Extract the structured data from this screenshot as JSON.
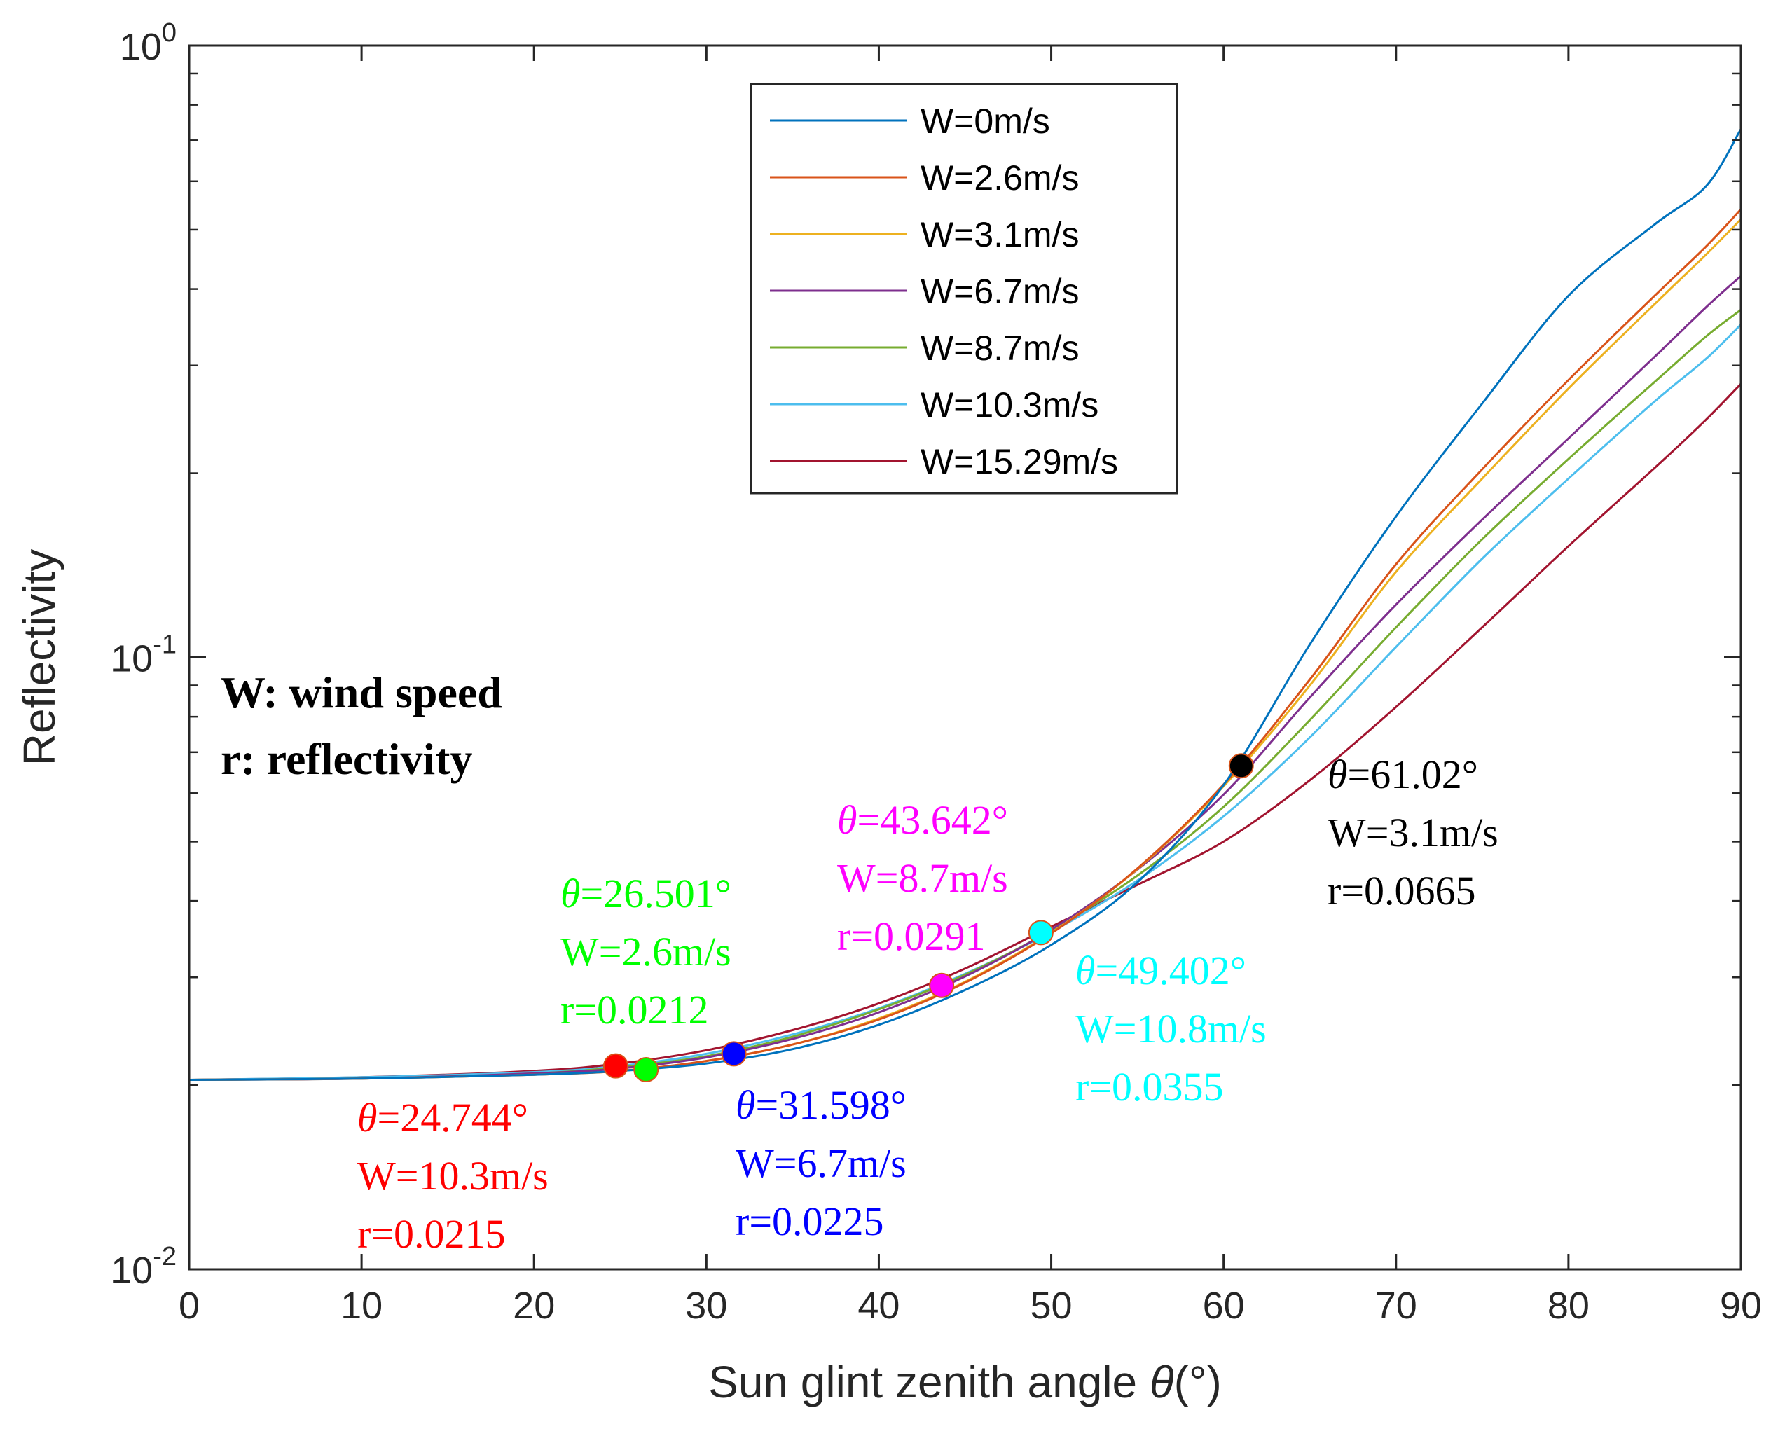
{
  "chart_data": {
    "type": "line",
    "title": "",
    "xlabel": "Sun glint zenith angle θ(°)",
    "xlabel_parts": {
      "prefix": "Sun glint zenith angle ",
      "symbol": "θ",
      "suffix": "(°)"
    },
    "ylabel": "Reflectivity",
    "xlim": [
      0,
      90
    ],
    "ylim": [
      0.01,
      1
    ],
    "yscale": "log",
    "grid": false,
    "legend_position": "top-center",
    "x_ticks": [
      0,
      10,
      20,
      30,
      40,
      50,
      60,
      70,
      80,
      90
    ],
    "x_tick_labels": [
      "0",
      "10",
      "20",
      "30",
      "40",
      "50",
      "60",
      "70",
      "80",
      "90"
    ],
    "y_ticks": [
      {
        "value": 1,
        "base": "10",
        "exp": "0"
      },
      {
        "value": 0.1,
        "base": "10",
        "exp": "-1"
      },
      {
        "value": 0.01,
        "base": "10",
        "exp": "-2"
      }
    ],
    "x": [
      0,
      10,
      20,
      25,
      30,
      35,
      40,
      45,
      50,
      55,
      60,
      65,
      70,
      75,
      80,
      85,
      88,
      90
    ],
    "series": [
      {
        "name": "W=0m/s",
        "color": "#0072BD",
        "values": [
          0.0204,
          0.0205,
          0.0208,
          0.0211,
          0.0217,
          0.0229,
          0.0251,
          0.0286,
          0.0339,
          0.0429,
          0.0619,
          0.105,
          0.17,
          0.26,
          0.39,
          0.51,
          0.59,
          0.73
        ]
      },
      {
        "name": "W=2.6m/s",
        "color": "#D95319",
        "values": [
          0.0204,
          0.0205,
          0.0208,
          0.0211,
          0.0219,
          0.0233,
          0.0256,
          0.0294,
          0.0354,
          0.0452,
          0.062,
          0.092,
          0.142,
          0.203,
          0.284,
          0.39,
          0.47,
          0.54
        ]
      },
      {
        "name": "W=3.1m/s",
        "color": "#EDB120",
        "values": [
          0.0204,
          0.0205,
          0.0208,
          0.0211,
          0.0219,
          0.0233,
          0.0257,
          0.0295,
          0.0355,
          0.0451,
          0.0616,
          0.09,
          0.138,
          0.196,
          0.275,
          0.378,
          0.456,
          0.52
        ]
      },
      {
        "name": "W=6.7m/s",
        "color": "#7E2F8E",
        "values": [
          0.0204,
          0.0205,
          0.0209,
          0.0213,
          0.0222,
          0.0238,
          0.0263,
          0.0301,
          0.0359,
          0.045,
          0.0597,
          0.086,
          0.122,
          0.168,
          0.228,
          0.31,
          0.374,
          0.42
        ]
      },
      {
        "name": "W=8.7m/s",
        "color": "#77AC30",
        "values": [
          0.0204,
          0.0205,
          0.0209,
          0.0214,
          0.0223,
          0.024,
          0.0266,
          0.0303,
          0.0358,
          0.044,
          0.057,
          0.079,
          0.112,
          0.156,
          0.211,
          0.282,
          0.335,
          0.37
        ]
      },
      {
        "name": "W=10.3m/s",
        "color": "#4DBEEE",
        "values": [
          0.0204,
          0.0206,
          0.021,
          0.0215,
          0.0225,
          0.0242,
          0.0267,
          0.0304,
          0.0356,
          0.0432,
          0.055,
          0.074,
          0.104,
          0.145,
          0.196,
          0.262,
          0.308,
          0.35
        ]
      },
      {
        "name": "W=15.29m/s",
        "color": "#A2142F",
        "values": [
          0.0204,
          0.0206,
          0.0211,
          0.0217,
          0.0228,
          0.0246,
          0.0272,
          0.031,
          0.0363,
          0.0425,
          0.05,
          0.063,
          0.083,
          0.112,
          0.152,
          0.204,
          0.245,
          0.28
        ]
      }
    ],
    "notes": [
      "W: wind speed",
      "r: reflectivity"
    ],
    "highlight_points": [
      {
        "x": 24.744,
        "y": 0.0215,
        "color": "#FF0000",
        "lines": [
          "=24.744°",
          "W=10.3m/s",
          "r=0.0215"
        ]
      },
      {
        "x": 26.501,
        "y": 0.0212,
        "color": "#00FF00",
        "lines": [
          "=26.501°",
          "W=2.6m/s",
          "r=0.0212"
        ]
      },
      {
        "x": 31.598,
        "y": 0.0225,
        "color": "#0000FF",
        "lines": [
          "=31.598°",
          "W=6.7m/s",
          "r=0.0225"
        ]
      },
      {
        "x": 43.642,
        "y": 0.0291,
        "color": "#FF00FF",
        "lines": [
          "=43.642°",
          "W=8.7m/s",
          "r=0.0291"
        ]
      },
      {
        "x": 49.402,
        "y": 0.0355,
        "color": "#00FFFF",
        "lines": [
          "=49.402°",
          "W=10.8m/s",
          "r=0.0355"
        ]
      },
      {
        "x": 61.02,
        "y": 0.0665,
        "color": "#000000",
        "lines": [
          "=61.02°",
          "W=3.1m/s",
          "r=0.0665"
        ]
      }
    ],
    "annotation_symbol": "θ"
  }
}
